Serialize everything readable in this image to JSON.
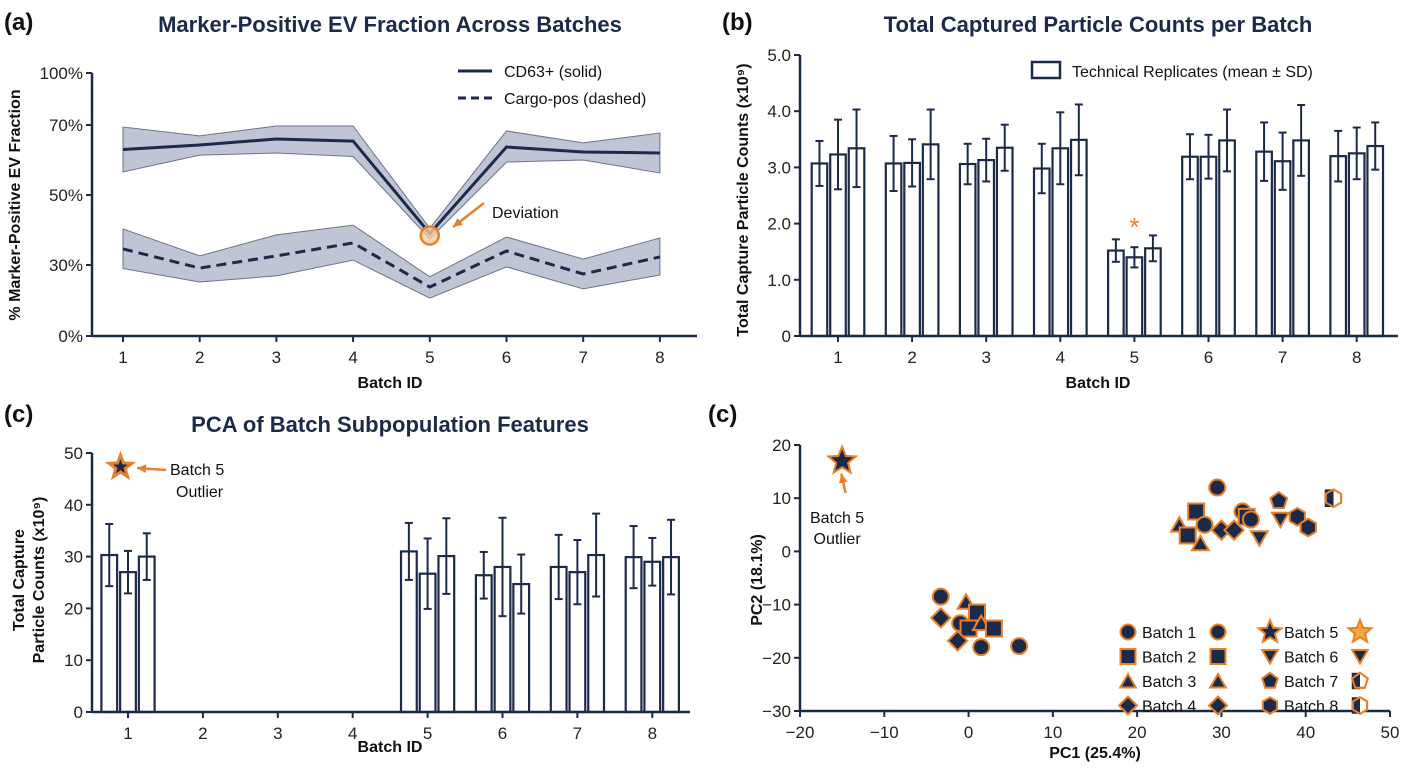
{
  "colors": {
    "navy": "#1c2a4a",
    "orange": "#e8802a",
    "band": "#a9b1c6",
    "bar_fill": "#ffffff"
  },
  "chart_data": [
    {
      "panel_label": "(a)",
      "type": "line",
      "title": "Marker-Positive EV Fraction Across Batches",
      "xlabel": "Batch ID",
      "ylabel": "% Marker-Positive EV Fraction",
      "categories": [
        "1",
        "2",
        "3",
        "4",
        "5",
        "6",
        "7",
        "8"
      ],
      "yticks": [
        "0%",
        "30%",
        "50%",
        "70%",
        "100%"
      ],
      "ytick_values": [
        0,
        30,
        50,
        70,
        100
      ],
      "ylim": [
        0,
        100
      ],
      "series": [
        {
          "name": "CD63+ (solid)",
          "style": "solid",
          "values": [
            63,
            64.3,
            66,
            65.4,
            39,
            63.7,
            62.3,
            62
          ],
          "lower": [
            56.6,
            61.4,
            62,
            61,
            37.5,
            59.4,
            60,
            56.3
          ],
          "upper": [
            69.4,
            66.9,
            69.7,
            69.7,
            40.5,
            68.3,
            64.9,
            67.7
          ]
        },
        {
          "name": "Cargo-pos (dashed)",
          "style": "dashed",
          "values": [
            34.6,
            28.7,
            32.6,
            36.3,
            20.7,
            34,
            26.2,
            32.3
          ],
          "lower": [
            28.5,
            22.8,
            25.4,
            31.4,
            16,
            29.2,
            19.9,
            25.8
          ],
          "upper": [
            40.3,
            32.6,
            38.6,
            41.4,
            25,
            38,
            31.7,
            37.7
          ]
        }
      ],
      "annotation": {
        "text": "Deviation",
        "batch": "5",
        "value": 39
      },
      "legend_position": "top-right",
      "grid": false
    },
    {
      "panel_label": "(b)",
      "type": "bar",
      "title": "Total Captured Particle Counts per Batch",
      "xlabel": "Batch ID",
      "ylabel": "Total Capture Particle Counts (x10⁹)",
      "categories": [
        "1",
        "2",
        "3",
        "4",
        "5",
        "6",
        "7",
        "8"
      ],
      "yticks": [
        "0",
        "1.0",
        "2.0",
        "3.0",
        "4.0",
        "5.0"
      ],
      "ylim": [
        0,
        5
      ],
      "legend": "Technical Replicates (mean ± SD)",
      "legend_position": "top-right",
      "replicates": [
        {
          "mean": [
            3.07,
            3.23,
            3.34
          ],
          "sd": [
            0.4,
            0.62,
            0.69
          ]
        },
        {
          "mean": [
            3.07,
            3.08,
            3.41
          ],
          "sd": [
            0.49,
            0.42,
            0.62
          ]
        },
        {
          "mean": [
            3.06,
            3.13,
            3.35
          ],
          "sd": [
            0.36,
            0.38,
            0.41
          ]
        },
        {
          "mean": [
            2.98,
            3.34,
            3.49
          ],
          "sd": [
            0.44,
            0.64,
            0.63
          ]
        },
        {
          "mean": [
            1.52,
            1.4,
            1.56
          ],
          "sd": [
            0.2,
            0.18,
            0.23
          ]
        },
        {
          "mean": [
            3.19,
            3.19,
            3.48
          ],
          "sd": [
            0.4,
            0.39,
            0.55
          ]
        },
        {
          "mean": [
            3.28,
            3.11,
            3.48
          ],
          "sd": [
            0.52,
            0.51,
            0.63
          ]
        },
        {
          "mean": [
            3.2,
            3.25,
            3.38
          ],
          "sd": [
            0.45,
            0.46,
            0.42
          ]
        }
      ],
      "annotation": {
        "text": "*",
        "batch": "5"
      },
      "grid": false
    },
    {
      "panel_label": "(c)",
      "type": "bar",
      "title": "PCA of Batch Subpopulation Features",
      "xlabel": "Batch ID",
      "ylabel_lines": [
        "Total Capture",
        "Particle Counts (x10⁹)"
      ],
      "categories": [
        "1",
        "2",
        "3",
        "4",
        "5",
        "6",
        "7",
        "8"
      ],
      "yticks": [
        "0",
        "10",
        "20",
        "30",
        "40",
        "50"
      ],
      "ylim": [
        0,
        50
      ],
      "replicates": [
        {
          "mean": [
            30.3,
            27.0,
            30.0
          ],
          "sd": [
            6.0,
            4.1,
            4.5
          ]
        },
        null,
        null,
        null,
        {
          "mean": [
            31.0,
            26.7,
            30.1
          ],
          "sd": [
            5.5,
            6.8,
            7.3
          ]
        },
        {
          "mean": [
            26.4,
            28.0,
            24.7
          ],
          "sd": [
            4.5,
            9.5,
            5.7
          ]
        },
        {
          "mean": [
            28.0,
            27.0,
            30.3
          ],
          "sd": [
            6.2,
            6.2,
            8.0
          ]
        },
        {
          "mean": [
            29.9,
            29.0,
            29.9
          ],
          "sd": [
            6.0,
            4.6,
            7.2
          ]
        }
      ],
      "annotation": {
        "lines": [
          "Batch 5",
          "Outlier"
        ],
        "marker": "star",
        "batch_position": 0.9,
        "value": 47.3
      },
      "grid": false
    },
    {
      "panel_label": "(c)",
      "type": "scatter",
      "xlabel": "PC1 (25.4%)",
      "ylabel": "PC2 (18.1%)",
      "xlim": [
        -20,
        50
      ],
      "ylim": [
        -30,
        20
      ],
      "xticks": [
        "−20",
        "−10",
        "0",
        "10",
        "20",
        "30",
        "40",
        "50"
      ],
      "xtick_values": [
        -20,
        -10,
        0,
        10,
        20,
        30,
        40,
        50
      ],
      "yticks": [
        "−30",
        "−20",
        "−10",
        "0",
        "10",
        "20"
      ],
      "ytick_values": [
        -30,
        -20,
        -10,
        0,
        10,
        20
      ],
      "annotation": {
        "lines": [
          "Batch 5",
          "Outlier"
        ],
        "x": -15,
        "y": 17
      },
      "legend_position": "bottom-right",
      "legend": [
        {
          "name": "Batch 1",
          "marker": "circle",
          "alt": "circle"
        },
        {
          "name": "Batch 2",
          "marker": "square",
          "alt": "square"
        },
        {
          "name": "Batch 3",
          "marker": "triangle",
          "alt": "triangle"
        },
        {
          "name": "Batch 4",
          "marker": "diamond",
          "alt": "diamond"
        },
        {
          "name": "Batch 5",
          "marker": "star",
          "alt": "star-orange"
        },
        {
          "name": "Batch 6",
          "marker": "triangle-down",
          "alt": "triangle-down"
        },
        {
          "name": "Batch 7",
          "marker": "pentagon",
          "alt": "pentagon-half"
        },
        {
          "name": "Batch 8",
          "marker": "hexagon",
          "alt": "hexagon-half"
        }
      ],
      "points": [
        {
          "batch": 1,
          "x": 29.5,
          "y": 12
        },
        {
          "batch": 2,
          "x": 27,
          "y": 7.5
        },
        {
          "batch": 3,
          "x": 25,
          "y": 5
        },
        {
          "batch": 2,
          "x": 26,
          "y": 3
        },
        {
          "batch": 3,
          "x": 27.5,
          "y": 1.5
        },
        {
          "batch": 1,
          "x": 28,
          "y": 5
        },
        {
          "batch": 4,
          "x": 30,
          "y": 4
        },
        {
          "batch": 4,
          "x": 31.5,
          "y": 4
        },
        {
          "batch": 1,
          "x": 32.5,
          "y": 7.5
        },
        {
          "batch": 2,
          "x": 33,
          "y": 6.5
        },
        {
          "batch": 1,
          "x": 33.5,
          "y": 6
        },
        {
          "batch": 6,
          "x": 34.5,
          "y": 2.5
        },
        {
          "batch": 7,
          "x": 36.8,
          "y": 9.5
        },
        {
          "batch": 6,
          "x": 37,
          "y": 6
        },
        {
          "batch": 8,
          "x": 39,
          "y": 6.5
        },
        {
          "batch": 8,
          "x": 40.3,
          "y": 4.5
        },
        {
          "batch": 8,
          "x": 43.3,
          "y": 10,
          "alt": true
        },
        {
          "batch": 1,
          "x": -3.3,
          "y": -8.5
        },
        {
          "batch": 3,
          "x": -0.3,
          "y": -9.5
        },
        {
          "batch": 4,
          "x": -3.3,
          "y": -12.5
        },
        {
          "batch": 2,
          "x": 1,
          "y": -11.5
        },
        {
          "batch": 1,
          "x": -1,
          "y": -13.5
        },
        {
          "batch": 2,
          "x": 0,
          "y": -14.5
        },
        {
          "batch": 3,
          "x": 1.5,
          "y": -13.5
        },
        {
          "batch": 2,
          "x": 3,
          "y": -14.5
        },
        {
          "batch": 4,
          "x": -1.3,
          "y": -16.8
        },
        {
          "batch": 1,
          "x": 1.5,
          "y": -18
        },
        {
          "batch": 1,
          "x": 6,
          "y": -17.8
        },
        {
          "batch": 5,
          "x": -15,
          "y": 17
        }
      ],
      "grid": false
    }
  ]
}
